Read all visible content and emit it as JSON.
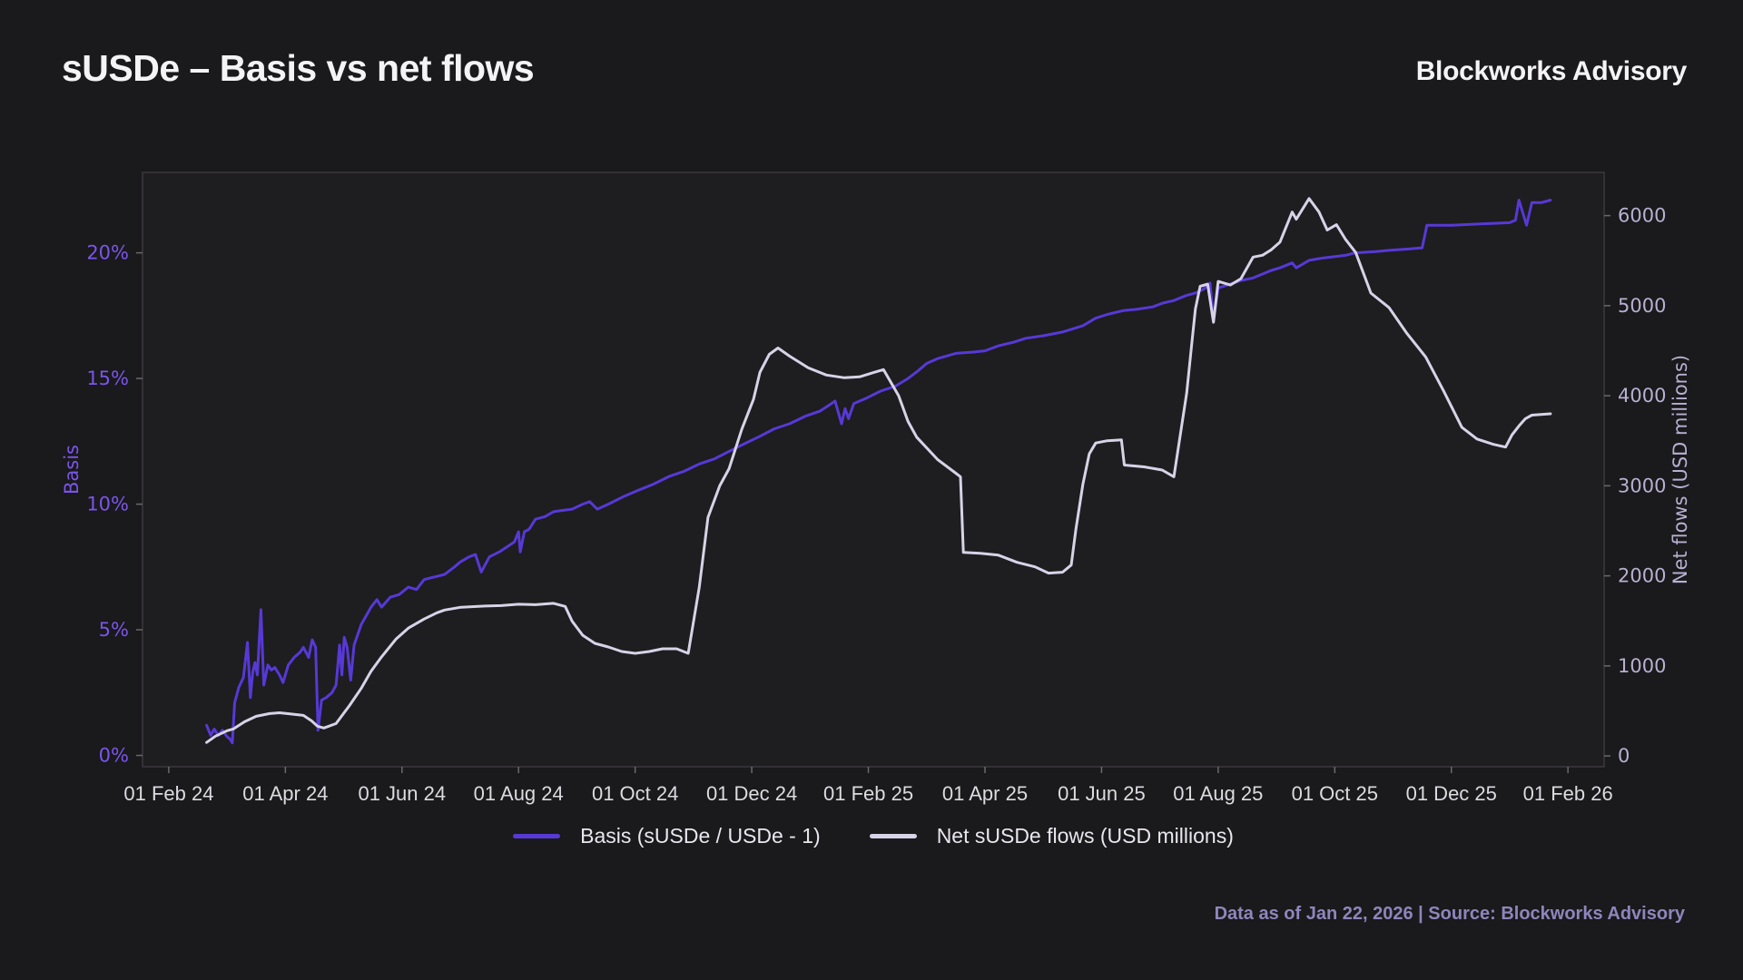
{
  "header": {
    "title": "sUSDe – Basis vs net flows",
    "brand": "Blockworks Advisory"
  },
  "footer": {
    "note": "Data as of Jan 22, 2026 | Source: Blockworks Advisory"
  },
  "colors": {
    "page_bg": "#1a191b",
    "plot_bg": "#1e1d1f",
    "plot_border": "#3b393e",
    "basis_line": "#5739d6",
    "basis_text": "#7a55ec",
    "flows_line": "#d7d3e8",
    "flows_text": "#b7b0d2",
    "xtick_text": "#dcdbe0",
    "tick_mark": "#6a6a6a"
  },
  "chart_data": {
    "type": "line",
    "title": "sUSDe – Basis vs net flows",
    "grid": false,
    "legend_position": "bottom-center",
    "x_axis": {
      "unit": "months since 2024-02-01",
      "lim": [
        -0.45,
        24.62
      ],
      "ticks": [
        0,
        2,
        4,
        6,
        8,
        10,
        12,
        14,
        16,
        18,
        20,
        22,
        24
      ],
      "tick_labels": [
        "01 Feb 24",
        "01 Apr 24",
        "01 Jun 24",
        "01 Aug 24",
        "01 Oct 24",
        "01 Dec 24",
        "01 Feb 25",
        "01 Apr 25",
        "01 Jun 25",
        "01 Aug 25",
        "01 Oct 25",
        "01 Dec 25",
        "01 Feb 26"
      ]
    },
    "y_left": {
      "label": "Basis",
      "lim": [
        -0.45,
        23.2
      ],
      "ticks": [
        0,
        5,
        10,
        15,
        20
      ],
      "tick_labels": [
        "0%",
        "5%",
        "10%",
        "15%",
        "20%"
      ]
    },
    "y_right": {
      "label": "Net flows (USD millions)",
      "lim": [
        -120,
        6480
      ],
      "ticks": [
        0,
        1000,
        2000,
        3000,
        4000,
        5000,
        6000
      ],
      "tick_labels": [
        "0",
        "1000",
        "2000",
        "3000",
        "4000",
        "5000",
        "6000"
      ]
    },
    "legend": [
      {
        "name": "Basis (sUSDe / USDe - 1)",
        "color": "#5739d6"
      },
      {
        "name": "Net sUSDe flows (USD millions)",
        "color": "#d7d3e8"
      }
    ],
    "series": [
      {
        "name": "Basis (sUSDe / USDe - 1)",
        "axis": "left",
        "color": "#5739d6",
        "unit": "%",
        "points": [
          [
            0.65,
            1.2
          ],
          [
            0.72,
            0.8
          ],
          [
            0.78,
            1.05
          ],
          [
            0.85,
            0.8
          ],
          [
            0.92,
            1.0
          ],
          [
            1.0,
            0.75
          ],
          [
            1.05,
            0.65
          ],
          [
            1.09,
            0.5
          ],
          [
            1.13,
            2.1
          ],
          [
            1.2,
            2.7
          ],
          [
            1.28,
            3.1
          ],
          [
            1.35,
            4.5
          ],
          [
            1.4,
            2.3
          ],
          [
            1.44,
            3.3
          ],
          [
            1.48,
            3.7
          ],
          [
            1.52,
            3.2
          ],
          [
            1.58,
            5.8
          ],
          [
            1.63,
            2.8
          ],
          [
            1.7,
            3.6
          ],
          [
            1.76,
            3.4
          ],
          [
            1.82,
            3.5
          ],
          [
            1.9,
            3.2
          ],
          [
            1.96,
            2.9
          ],
          [
            2.05,
            3.6
          ],
          [
            2.15,
            3.9
          ],
          [
            2.25,
            4.1
          ],
          [
            2.31,
            4.3
          ],
          [
            2.4,
            3.9
          ],
          [
            2.46,
            4.6
          ],
          [
            2.52,
            4.3
          ],
          [
            2.56,
            1.0
          ],
          [
            2.62,
            2.2
          ],
          [
            2.7,
            2.3
          ],
          [
            2.8,
            2.5
          ],
          [
            2.87,
            2.8
          ],
          [
            2.93,
            4.4
          ],
          [
            2.97,
            3.2
          ],
          [
            3.01,
            4.7
          ],
          [
            3.06,
            4.3
          ],
          [
            3.12,
            3.0
          ],
          [
            3.18,
            4.4
          ],
          [
            3.3,
            5.2
          ],
          [
            3.47,
            5.9
          ],
          [
            3.57,
            6.2
          ],
          [
            3.65,
            5.9
          ],
          [
            3.8,
            6.3
          ],
          [
            3.95,
            6.4
          ],
          [
            4.11,
            6.7
          ],
          [
            4.25,
            6.6
          ],
          [
            4.38,
            7.0
          ],
          [
            4.55,
            7.1
          ],
          [
            4.73,
            7.2
          ],
          [
            4.9,
            7.5
          ],
          [
            5.0,
            7.7
          ],
          [
            5.15,
            7.9
          ],
          [
            5.26,
            8.0
          ],
          [
            5.36,
            7.3
          ],
          [
            5.5,
            7.9
          ],
          [
            5.67,
            8.1
          ],
          [
            5.8,
            8.3
          ],
          [
            5.93,
            8.5
          ],
          [
            6.0,
            8.9
          ],
          [
            6.03,
            8.1
          ],
          [
            6.1,
            8.9
          ],
          [
            6.18,
            9.0
          ],
          [
            6.29,
            9.4
          ],
          [
            6.45,
            9.5
          ],
          [
            6.6,
            9.7
          ],
          [
            6.75,
            9.75
          ],
          [
            6.92,
            9.8
          ],
          [
            7.1,
            10.0
          ],
          [
            7.22,
            10.1
          ],
          [
            7.35,
            9.8
          ],
          [
            7.54,
            10.0
          ],
          [
            7.8,
            10.3
          ],
          [
            8.0,
            10.5
          ],
          [
            8.32,
            10.8
          ],
          [
            8.58,
            11.1
          ],
          [
            8.83,
            11.3
          ],
          [
            9.1,
            11.6
          ],
          [
            9.36,
            11.8
          ],
          [
            9.61,
            12.1
          ],
          [
            9.87,
            12.4
          ],
          [
            10.14,
            12.7
          ],
          [
            10.39,
            13.0
          ],
          [
            10.65,
            13.2
          ],
          [
            10.92,
            13.5
          ],
          [
            11.17,
            13.7
          ],
          [
            11.3,
            13.9
          ],
          [
            11.43,
            14.1
          ],
          [
            11.54,
            13.2
          ],
          [
            11.6,
            13.8
          ],
          [
            11.66,
            13.4
          ],
          [
            11.75,
            14.0
          ],
          [
            11.95,
            14.2
          ],
          [
            12.21,
            14.5
          ],
          [
            12.47,
            14.7
          ],
          [
            12.68,
            15.0
          ],
          [
            12.85,
            15.3
          ],
          [
            13.0,
            15.6
          ],
          [
            13.2,
            15.8
          ],
          [
            13.5,
            16.0
          ],
          [
            13.8,
            16.05
          ],
          [
            14.0,
            16.1
          ],
          [
            14.23,
            16.3
          ],
          [
            14.5,
            16.45
          ],
          [
            14.7,
            16.6
          ],
          [
            15.0,
            16.7
          ],
          [
            15.33,
            16.85
          ],
          [
            15.68,
            17.1
          ],
          [
            15.9,
            17.4
          ],
          [
            16.1,
            17.55
          ],
          [
            16.37,
            17.7
          ],
          [
            16.6,
            17.75
          ],
          [
            16.88,
            17.85
          ],
          [
            17.05,
            18.0
          ],
          [
            17.24,
            18.1
          ],
          [
            17.45,
            18.3
          ],
          [
            17.61,
            18.4
          ],
          [
            17.75,
            18.55
          ],
          [
            17.86,
            18.8
          ],
          [
            17.92,
            17.3
          ],
          [
            18.0,
            18.6
          ],
          [
            18.2,
            18.75
          ],
          [
            18.39,
            18.9
          ],
          [
            18.6,
            19.0
          ],
          [
            18.91,
            19.3
          ],
          [
            19.06,
            19.4
          ],
          [
            19.27,
            19.6
          ],
          [
            19.34,
            19.4
          ],
          [
            19.56,
            19.7
          ],
          [
            19.81,
            19.8
          ],
          [
            20.18,
            19.9
          ],
          [
            20.36,
            20.0
          ],
          [
            20.7,
            20.05
          ],
          [
            20.93,
            20.1
          ],
          [
            21.24,
            20.15
          ],
          [
            21.5,
            20.2
          ],
          [
            21.58,
            21.1
          ],
          [
            22.0,
            21.1
          ],
          [
            22.5,
            21.15
          ],
          [
            23.0,
            21.2
          ],
          [
            23.1,
            21.3
          ],
          [
            23.16,
            22.1
          ],
          [
            23.29,
            21.1
          ],
          [
            23.38,
            22.0
          ],
          [
            23.55,
            22.0
          ],
          [
            23.7,
            22.1
          ]
        ]
      },
      {
        "name": "Net sUSDe flows (USD millions)",
        "axis": "right",
        "color": "#d7d3e8",
        "unit": "USD millions",
        "points": [
          [
            0.65,
            150
          ],
          [
            0.8,
            220
          ],
          [
            1.0,
            280
          ],
          [
            1.11,
            300
          ],
          [
            1.3,
            380
          ],
          [
            1.5,
            440
          ],
          [
            1.73,
            470
          ],
          [
            1.9,
            480
          ],
          [
            2.1,
            465
          ],
          [
            2.31,
            450
          ],
          [
            2.45,
            390
          ],
          [
            2.55,
            330
          ],
          [
            2.66,
            310
          ],
          [
            2.87,
            360
          ],
          [
            3.1,
            560
          ],
          [
            3.3,
            750
          ],
          [
            3.47,
            940
          ],
          [
            3.65,
            1100
          ],
          [
            3.9,
            1300
          ],
          [
            4.11,
            1420
          ],
          [
            4.38,
            1520
          ],
          [
            4.6,
            1590
          ],
          [
            4.73,
            1620
          ],
          [
            5.0,
            1650
          ],
          [
            5.42,
            1665
          ],
          [
            5.7,
            1670
          ],
          [
            6.0,
            1685
          ],
          [
            6.29,
            1680
          ],
          [
            6.6,
            1695
          ],
          [
            6.8,
            1660
          ],
          [
            6.92,
            1495
          ],
          [
            7.1,
            1340
          ],
          [
            7.31,
            1250
          ],
          [
            7.54,
            1210
          ],
          [
            7.77,
            1160
          ],
          [
            8.0,
            1140
          ],
          [
            8.24,
            1160
          ],
          [
            8.47,
            1190
          ],
          [
            8.71,
            1190
          ],
          [
            8.91,
            1140
          ],
          [
            9.1,
            1875
          ],
          [
            9.25,
            2650
          ],
          [
            9.45,
            3000
          ],
          [
            9.61,
            3190
          ],
          [
            9.83,
            3630
          ],
          [
            10.03,
            3960
          ],
          [
            10.14,
            4260
          ],
          [
            10.3,
            4460
          ],
          [
            10.45,
            4530
          ],
          [
            10.65,
            4440
          ],
          [
            10.97,
            4310
          ],
          [
            11.28,
            4230
          ],
          [
            11.59,
            4200
          ],
          [
            11.85,
            4210
          ],
          [
            12.1,
            4260
          ],
          [
            12.26,
            4290
          ],
          [
            12.52,
            4000
          ],
          [
            12.68,
            3715
          ],
          [
            12.83,
            3540
          ],
          [
            13.19,
            3290
          ],
          [
            13.5,
            3140
          ],
          [
            13.58,
            3100
          ],
          [
            13.63,
            2260
          ],
          [
            13.92,
            2250
          ],
          [
            14.23,
            2230
          ],
          [
            14.55,
            2150
          ],
          [
            14.86,
            2100
          ],
          [
            15.09,
            2030
          ],
          [
            15.33,
            2040
          ],
          [
            15.48,
            2120
          ],
          [
            15.56,
            2520
          ],
          [
            15.68,
            3020
          ],
          [
            15.79,
            3355
          ],
          [
            15.9,
            3475
          ],
          [
            16.1,
            3500
          ],
          [
            16.34,
            3510
          ],
          [
            16.39,
            3230
          ],
          [
            16.73,
            3210
          ],
          [
            17.04,
            3175
          ],
          [
            17.24,
            3100
          ],
          [
            17.46,
            4030
          ],
          [
            17.54,
            4530
          ],
          [
            17.61,
            4965
          ],
          [
            17.69,
            5215
          ],
          [
            17.82,
            5240
          ],
          [
            17.92,
            4815
          ],
          [
            18.0,
            5270
          ],
          [
            18.21,
            5230
          ],
          [
            18.39,
            5300
          ],
          [
            18.6,
            5540
          ],
          [
            18.76,
            5560
          ],
          [
            18.91,
            5620
          ],
          [
            19.06,
            5705
          ],
          [
            19.27,
            6040
          ],
          [
            19.34,
            5960
          ],
          [
            19.56,
            6190
          ],
          [
            19.73,
            6040
          ],
          [
            19.87,
            5840
          ],
          [
            20.03,
            5900
          ],
          [
            20.18,
            5740
          ],
          [
            20.36,
            5590
          ],
          [
            20.62,
            5140
          ],
          [
            20.93,
            4980
          ],
          [
            21.24,
            4690
          ],
          [
            21.56,
            4430
          ],
          [
            21.87,
            4050
          ],
          [
            22.18,
            3650
          ],
          [
            22.44,
            3520
          ],
          [
            22.72,
            3460
          ],
          [
            22.93,
            3430
          ],
          [
            23.04,
            3565
          ],
          [
            23.16,
            3665
          ],
          [
            23.27,
            3745
          ],
          [
            23.38,
            3785
          ],
          [
            23.7,
            3800
          ]
        ]
      }
    ]
  }
}
